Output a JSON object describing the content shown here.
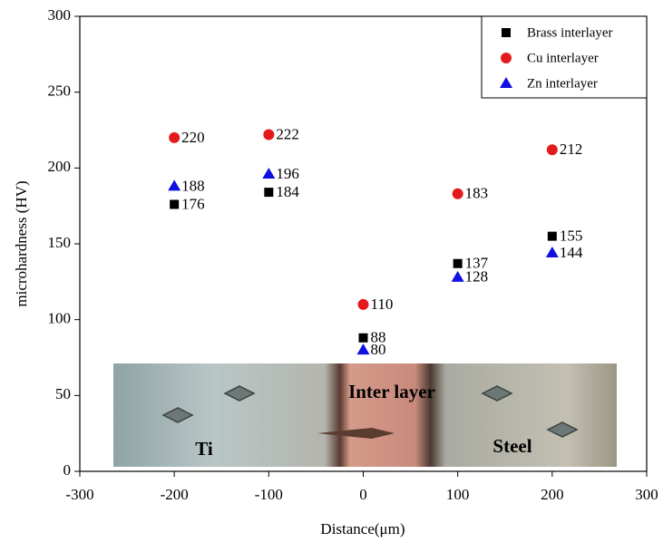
{
  "chart_data": {
    "type": "scatter",
    "x_label": "Distance(μm)",
    "y_label": "microhardness (HV)",
    "x": [
      -200,
      -100,
      0,
      100,
      200
    ],
    "series": [
      {
        "name": "Brass interlayer",
        "color": "#000000",
        "marker": "square",
        "values": [
          176,
          184,
          88,
          137,
          155
        ]
      },
      {
        "name": "Cu interlayer",
        "color": "#e31a1c",
        "marker": "circle",
        "values": [
          220,
          222,
          110,
          183,
          212
        ]
      },
      {
        "name": "Zn interlayer",
        "color": "#1010e0",
        "marker": "triangle",
        "values": [
          188,
          196,
          80,
          128,
          144
        ]
      }
    ],
    "xlim": [
      -300,
      300
    ],
    "xticks": [
      -300,
      -200,
      -100,
      0,
      100,
      200,
      300
    ],
    "ylim": [
      0,
      300
    ],
    "yticks": [
      0,
      50,
      100,
      150,
      200,
      250,
      300
    ],
    "grid": false,
    "legend": "upper right",
    "annotations": [
      "Ti",
      "Inter layer",
      "Steel"
    ]
  }
}
